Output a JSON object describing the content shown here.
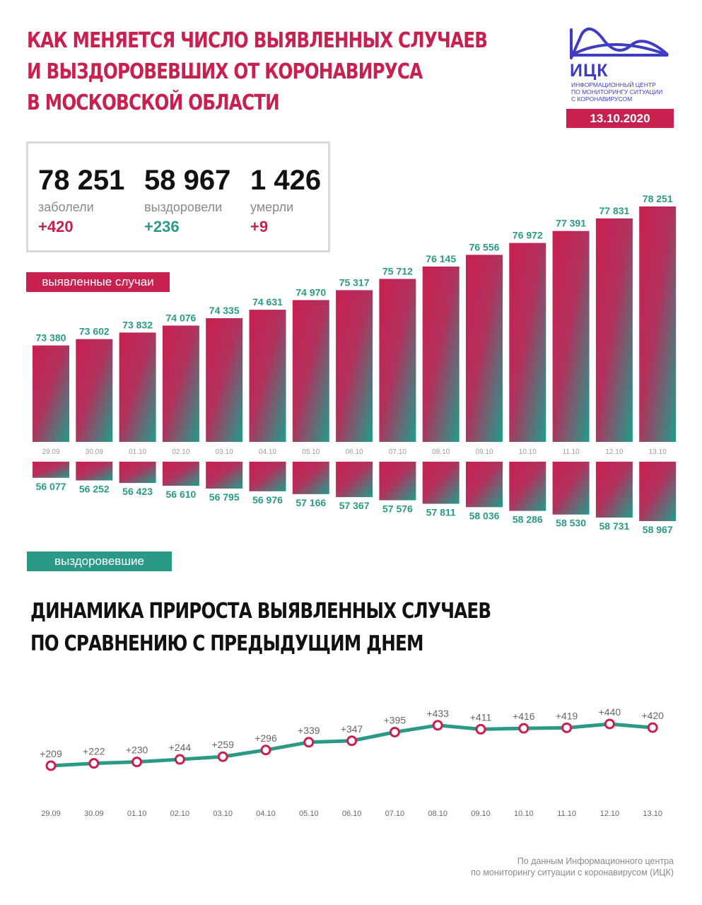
{
  "header": {
    "title_lines": [
      "КАК МЕНЯЕТСЯ ЧИСЛО ВЫЯВЛЕННЫХ СЛУЧАЕВ",
      "И ВЫЗДОРОВЕВШИХ ОТ КОРОНАВИРУСА",
      "В МОСКОВСКОЙ ОБЛАСТИ"
    ],
    "logo_name": "ИЦК",
    "logo_desc_lines": [
      "Информационный центр",
      "по мониторингу ситуации",
      "с коронавирусом"
    ],
    "date": "13.10.2020"
  },
  "stats": [
    {
      "value": "78 251",
      "label": "заболели",
      "delta": "+420",
      "color": "#c8204f"
    },
    {
      "value": "58 967",
      "label": "выздоровели",
      "delta": "+236",
      "color": "#2a9a86"
    },
    {
      "value": "1 426",
      "label": "умерли",
      "delta": "+9",
      "color": "#c8204f"
    }
  ],
  "labels": {
    "cases": "выявленные случаи",
    "recovered": "выздоровевшие"
  },
  "colors": {
    "crimson": "#c8204f",
    "teal": "#2a9a86",
    "logo_blue": "#3f3cc4"
  },
  "chart_data": [
    {
      "type": "bar",
      "categories": [
        "29.09",
        "30.09",
        "01.10",
        "02.10",
        "03.10",
        "04.10",
        "05.10",
        "06.10",
        "07.10",
        "08.10",
        "09.10",
        "10.10",
        "11.10",
        "12.10",
        "13.10"
      ],
      "series": [
        {
          "name": "выявленные случаи",
          "values": [
            73380,
            73602,
            73832,
            74076,
            74335,
            74631,
            74970,
            75317,
            75712,
            76145,
            76556,
            76972,
            77391,
            77831,
            78251
          ],
          "labels": [
            "73 380",
            "73 602",
            "73 832",
            "74 076",
            "74 335",
            "74 631",
            "74 970",
            "75 317",
            "75 712",
            "76 145",
            "76 556",
            "76 972",
            "77 391",
            "77 831",
            "78 251"
          ]
        },
        {
          "name": "выздоровевшие",
          "values": [
            56077,
            56252,
            56423,
            56610,
            56795,
            56976,
            57166,
            57367,
            57576,
            57811,
            58036,
            58286,
            58530,
            58731,
            58967
          ],
          "labels": [
            "56 077",
            "56 252",
            "56 423",
            "56 610",
            "56 795",
            "56 976",
            "57 166",
            "57 367",
            "57 576",
            "57 811",
            "58 036",
            "58 286",
            "58 530",
            "58 731",
            "58 967"
          ]
        }
      ]
    },
    {
      "type": "line",
      "title_lines": [
        "ДИНАМИКА ПРИРОСТА ВЫЯВЛЕННЫХ СЛУЧАЕВ",
        "ПО СРАВНЕНИЮ С ПРЕДЫДУЩИМ ДНЕМ"
      ],
      "categories": [
        "29.09",
        "30.09",
        "01.10",
        "02.10",
        "03.10",
        "04.10",
        "05.10",
        "06.10",
        "07.10",
        "08.10",
        "09.10",
        "10.10",
        "11.10",
        "12.10",
        "13.10"
      ],
      "values": [
        209,
        222,
        230,
        244,
        259,
        296,
        339,
        347,
        395,
        433,
        411,
        416,
        419,
        440,
        420
      ],
      "labels": [
        "+209",
        "+222",
        "+230",
        "+244",
        "+259",
        "+296",
        "+339",
        "+347",
        "+395",
        "+433",
        "+411",
        "+416",
        "+419",
        "+440",
        "+420"
      ]
    }
  ],
  "footnote_lines": [
    "По данным Информационного центра",
    "по мониторингу ситуации с коронавирусом (ИЦК)"
  ]
}
